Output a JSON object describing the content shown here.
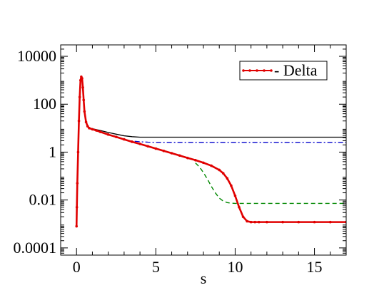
{
  "chart_data": {
    "type": "line",
    "xlabel": "s",
    "ylabel": "",
    "xlim": [
      -1,
      17
    ],
    "ylim": [
      5e-05,
      30000
    ],
    "y_scale": "log",
    "grid": false,
    "legend_position": "top-right",
    "x_ticks": [
      {
        "value": 0,
        "label": "0"
      },
      {
        "value": 5,
        "label": "5"
      },
      {
        "value": 10,
        "label": "10"
      },
      {
        "value": 15,
        "label": "15"
      }
    ],
    "y_ticks": [
      {
        "value": 0.0001,
        "label": "0.0001"
      },
      {
        "value": 0.01,
        "label": "0.01"
      },
      {
        "value": 1,
        "label": "1"
      },
      {
        "value": 100,
        "label": "100"
      },
      {
        "value": 10000,
        "label": "10000"
      }
    ],
    "series": [
      {
        "name": "- Delta",
        "style": "solid-thick-markers",
        "color": "#e00000",
        "x": [
          0,
          0.02,
          0.05,
          0.1,
          0.15,
          0.2,
          0.25,
          0.3,
          0.35,
          0.4,
          0.45,
          0.5,
          0.6,
          0.7,
          0.8,
          1,
          1.25,
          1.5,
          2,
          2.5,
          3,
          3.5,
          4,
          4.5,
          5,
          5.5,
          6,
          6.5,
          7,
          7.5,
          8,
          8.5,
          9,
          9.25,
          9.5,
          9.75,
          10,
          10.25,
          10.5,
          10.75,
          11,
          11.25,
          11.5,
          12,
          13,
          14,
          15,
          16,
          17
        ],
        "y": [
          0.0008,
          0.005,
          0.05,
          1,
          20,
          200,
          1000,
          1400,
          1200,
          500,
          150,
          50,
          18,
          12,
          10,
          9,
          8,
          7,
          5.4,
          4.3,
          3.4,
          2.7,
          2.2,
          1.75,
          1.4,
          1.12,
          0.9,
          0.72,
          0.57,
          0.46,
          0.36,
          0.27,
          0.18,
          0.13,
          0.08,
          0.04,
          0.015,
          0.005,
          0.002,
          0.0013,
          0.0012,
          0.0012,
          0.0012,
          0.0012,
          0.0012,
          0.0012,
          0.0012,
          0.0012,
          0.0012
        ]
      },
      {
        "name": "",
        "style": "dashed",
        "color": "#008800",
        "x": [
          7.5,
          7.75,
          8,
          8.25,
          8.5,
          8.75,
          9,
          9.25,
          9.5,
          9.75,
          10,
          10.5,
          11,
          12,
          13,
          14,
          15,
          16,
          17
        ],
        "y": [
          0.35,
          0.24,
          0.14,
          0.075,
          0.037,
          0.02,
          0.012,
          0.009,
          0.0078,
          0.0074,
          0.0072,
          0.0072,
          0.0072,
          0.0072,
          0.0072,
          0.0072,
          0.0072,
          0.0072,
          0.0072
        ]
      },
      {
        "name": "",
        "style": "solid-thin",
        "color": "#000000",
        "x": [
          1,
          1.5,
          2,
          2.5,
          3,
          3.5,
          4,
          5,
          6,
          7,
          8,
          9,
          10,
          11,
          12,
          13,
          14,
          15,
          16,
          17
        ],
        "y": [
          9.5,
          8,
          6.6,
          5.6,
          4.8,
          4.4,
          4.2,
          4.2,
          4.2,
          4.2,
          4.2,
          4.2,
          4.2,
          4.2,
          4.2,
          4.2,
          4.2,
          4.2,
          4.2,
          4.2
        ]
      },
      {
        "name": "",
        "style": "dash-dot",
        "color": "#0000cc",
        "x": [
          3,
          3.5,
          4,
          4.5,
          5,
          6,
          7,
          8,
          9,
          10,
          11,
          12,
          13,
          14,
          15,
          16,
          17
        ],
        "y": [
          3.3,
          2.9,
          2.7,
          2.6,
          2.55,
          2.55,
          2.55,
          2.55,
          2.55,
          2.55,
          2.55,
          2.55,
          2.55,
          2.55,
          2.55,
          2.55,
          2.55
        ]
      }
    ]
  }
}
